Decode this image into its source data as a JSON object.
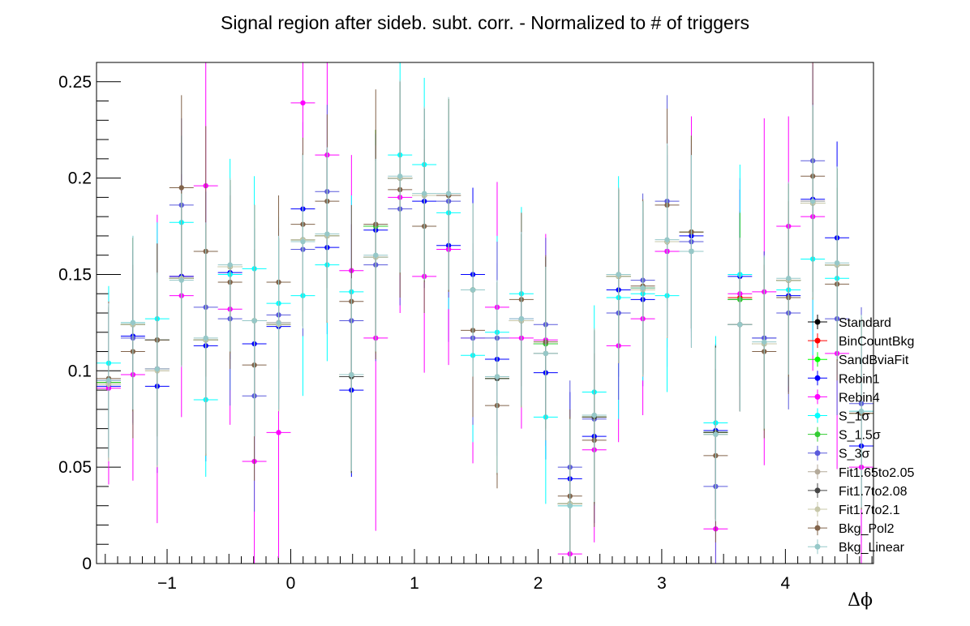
{
  "chart_data": {
    "type": "scatter",
    "title": "Signal region after sideb. subt. corr. - Normalized to # of triggers",
    "xlabel": "Δϕ",
    "ylabel": "",
    "xlim": [
      -1.5708,
      4.7124
    ],
    "ylim": [
      0,
      0.26
    ],
    "x_ticks": [
      -1,
      0,
      1,
      2,
      3,
      4
    ],
    "x_tick_labels": [
      "−1",
      "0",
      "1",
      "2",
      "3",
      "4"
    ],
    "y_ticks": [
      0,
      0.05,
      0.1,
      0.15,
      0.2,
      0.25
    ],
    "y_tick_labels": [
      "0",
      "0.05",
      "0.1",
      "0.15",
      "0.2",
      "0.25"
    ],
    "grid": false,
    "legend_position": "right",
    "bin_width": 0.1963,
    "x": [
      -1.4726,
      -1.2763,
      -1.0799,
      -0.8836,
      -0.6872,
      -0.4909,
      -0.2945,
      -0.0982,
      0.0982,
      0.2945,
      0.4909,
      0.6872,
      0.8836,
      1.0799,
      1.2763,
      1.4726,
      1.669,
      1.8653,
      2.0617,
      2.258,
      2.4544,
      2.6507,
      2.8471,
      3.0434,
      3.2398,
      3.4361,
      3.6325,
      3.8288,
      4.0252,
      4.2215,
      4.4179,
      4.6142
    ],
    "series": [
      {
        "name": "Standard",
        "color": "#000000",
        "values": [
          0.093,
          0.124,
          0.116,
          0.148,
          0.116,
          0.154,
          0.126,
          0.124,
          0.168,
          0.17,
          0.097,
          0.175,
          0.2,
          0.191,
          0.191,
          0.142,
          0.096,
          0.126,
          0.114,
          0.031,
          0.076,
          0.149,
          0.143,
          0.167,
          0.172,
          0.068,
          0.137,
          0.114,
          0.147,
          0.187,
          0.155,
          0.078
        ],
        "errors": [
          0.04,
          0.045,
          0.05,
          0.045,
          0.06,
          0.045,
          0.06,
          0.045,
          0.045,
          0.045,
          0.05,
          0.05,
          0.05,
          0.045,
          0.05,
          0.045,
          0.05,
          0.045,
          0.045,
          0.045,
          0.045,
          0.045,
          0.045,
          0.05,
          0.05,
          0.045,
          0.045,
          0.045,
          0.05,
          0.05,
          0.05,
          0.05
        ]
      },
      {
        "name": "BinCountBkg",
        "color": "#ff0000",
        "values": [
          0.094,
          0.124,
          0.116,
          0.149,
          0.116,
          0.154,
          0.126,
          0.125,
          0.168,
          0.17,
          0.098,
          0.175,
          0.2,
          0.191,
          0.191,
          0.142,
          0.096,
          0.126,
          0.114,
          0.031,
          0.076,
          0.149,
          0.143,
          0.167,
          0.172,
          0.068,
          0.138,
          0.114,
          0.147,
          0.188,
          0.155,
          0.078
        ],
        "errors": [
          0.04,
          0.045,
          0.05,
          0.045,
          0.06,
          0.045,
          0.06,
          0.045,
          0.045,
          0.045,
          0.05,
          0.05,
          0.05,
          0.045,
          0.05,
          0.045,
          0.05,
          0.045,
          0.045,
          0.045,
          0.045,
          0.045,
          0.045,
          0.05,
          0.05,
          0.045,
          0.045,
          0.045,
          0.05,
          0.05,
          0.05,
          0.05
        ]
      },
      {
        "name": "SandBviaFit",
        "color": "#00ff00",
        "values": [
          0.094,
          0.124,
          0.116,
          0.148,
          0.116,
          0.154,
          0.126,
          0.124,
          0.168,
          0.17,
          0.097,
          0.175,
          0.2,
          0.191,
          0.191,
          0.142,
          0.096,
          0.126,
          0.114,
          0.031,
          0.076,
          0.149,
          0.143,
          0.167,
          0.172,
          0.068,
          0.137,
          0.114,
          0.147,
          0.187,
          0.155,
          0.078
        ],
        "errors": [
          0.04,
          0.045,
          0.05,
          0.045,
          0.06,
          0.045,
          0.06,
          0.045,
          0.045,
          0.045,
          0.05,
          0.05,
          0.05,
          0.045,
          0.05,
          0.045,
          0.05,
          0.045,
          0.045,
          0.045,
          0.045,
          0.045,
          0.045,
          0.05,
          0.05,
          0.045,
          0.045,
          0.045,
          0.05,
          0.05,
          0.05,
          0.05
        ]
      },
      {
        "name": "Rebin1",
        "color": "#0000ff",
        "values": [
          0.092,
          0.118,
          0.092,
          0.149,
          0.113,
          0.151,
          0.114,
          0.123,
          0.184,
          0.164,
          0.09,
          0.173,
          0.2,
          0.188,
          0.165,
          0.15,
          0.106,
          0.126,
          0.099,
          0.044,
          0.066,
          0.142,
          0.137,
          0.162,
          0.17,
          0.069,
          0.149,
          0.117,
          0.139,
          0.189,
          0.169,
          0.061
        ],
        "errors": [
          0.04,
          0.045,
          0.045,
          0.045,
          0.06,
          0.045,
          0.06,
          0.045,
          0.045,
          0.045,
          0.045,
          0.05,
          0.05,
          0.045,
          0.05,
          0.045,
          0.05,
          0.045,
          0.045,
          0.045,
          0.045,
          0.045,
          0.045,
          0.05,
          0.05,
          0.045,
          0.045,
          0.045,
          0.05,
          0.05,
          0.05,
          0.05
        ]
      },
      {
        "name": "Rebin4",
        "color": "#ff00ff",
        "values": [
          0.091,
          0.098,
          0.101,
          0.139,
          0.196,
          0.132,
          0.053,
          0.068,
          0.239,
          0.212,
          0.152,
          0.117,
          0.19,
          0.149,
          0.163,
          0.117,
          0.133,
          0.117,
          0.116,
          0.005,
          0.059,
          0.113,
          0.127,
          0.162,
          0.172,
          0.018,
          0.14,
          0.141,
          0.175,
          0.18,
          0.109,
          0.05
        ],
        "errors": [
          0.05,
          0.055,
          0.08,
          0.063,
          0.08,
          0.06,
          0.08,
          0.065,
          0.055,
          0.06,
          0.06,
          0.1,
          0.06,
          0.05,
          0.06,
          0.065,
          0.065,
          0.047,
          0.055,
          0.05,
          0.048,
          0.05,
          0.05,
          0.06,
          0.06,
          0.05,
          0.06,
          0.09,
          0.057,
          0.08,
          0.06,
          0.06
        ]
      },
      {
        "name": "S_1σ",
        "color": "#00ffff",
        "values": [
          0.104,
          0.125,
          0.127,
          0.177,
          0.085,
          0.15,
          0.153,
          0.135,
          0.139,
          0.155,
          0.141,
          0.159,
          0.212,
          0.207,
          0.182,
          0.108,
          0.12,
          0.14,
          0.076,
          0.03,
          0.089,
          0.138,
          0.14,
          0.139,
          0.162,
          0.073,
          0.15,
          0.114,
          0.142,
          0.158,
          0.148,
          0.079
        ],
        "errors": [
          0.04,
          0.045,
          0.05,
          0.045,
          0.04,
          0.06,
          0.048,
          0.045,
          0.052,
          0.05,
          0.05,
          0.05,
          0.05,
          0.045,
          0.05,
          0.045,
          0.05,
          0.045,
          0.045,
          0.045,
          0.045,
          0.063,
          0.045,
          0.05,
          0.05,
          0.045,
          0.057,
          0.045,
          0.05,
          0.05,
          0.05,
          0.05
        ]
      },
      {
        "name": "S_1.5σ",
        "color": "#33cc33",
        "values": [
          0.094,
          0.124,
          0.116,
          0.148,
          0.116,
          0.154,
          0.126,
          0.124,
          0.168,
          0.17,
          0.097,
          0.175,
          0.2,
          0.191,
          0.191,
          0.142,
          0.096,
          0.126,
          0.114,
          0.031,
          0.076,
          0.149,
          0.143,
          0.167,
          0.172,
          0.068,
          0.137,
          0.114,
          0.147,
          0.187,
          0.155,
          0.078
        ],
        "errors": [
          0.04,
          0.045,
          0.05,
          0.045,
          0.06,
          0.045,
          0.06,
          0.045,
          0.045,
          0.045,
          0.05,
          0.05,
          0.05,
          0.045,
          0.05,
          0.045,
          0.05,
          0.045,
          0.045,
          0.045,
          0.045,
          0.045,
          0.045,
          0.05,
          0.05,
          0.045,
          0.045,
          0.045,
          0.05,
          0.05,
          0.05,
          0.05
        ]
      },
      {
        "name": "S_3σ",
        "color": "#5a5adc",
        "values": [
          0.095,
          0.117,
          0.116,
          0.186,
          0.133,
          0.127,
          0.087,
          0.129,
          0.163,
          0.193,
          0.126,
          0.155,
          0.184,
          0.191,
          0.188,
          0.117,
          0.117,
          0.127,
          0.124,
          0.05,
          0.075,
          0.13,
          0.147,
          0.188,
          0.167,
          0.04,
          0.124,
          0.117,
          0.13,
          0.209,
          0.127,
          0.083
        ],
        "errors": [
          0.04,
          0.045,
          0.05,
          0.045,
          0.06,
          0.045,
          0.06,
          0.045,
          0.045,
          0.045,
          0.05,
          0.05,
          0.05,
          0.045,
          0.05,
          0.045,
          0.05,
          0.045,
          0.045,
          0.045,
          0.045,
          0.045,
          0.045,
          0.055,
          0.05,
          0.05,
          0.045,
          0.045,
          0.05,
          0.05,
          0.05,
          0.05
        ]
      },
      {
        "name": "Fit1.65to2.05",
        "color": "#b4aa9a",
        "values": [
          0.093,
          0.124,
          0.1,
          0.148,
          0.116,
          0.154,
          0.126,
          0.124,
          0.168,
          0.17,
          0.097,
          0.159,
          0.2,
          0.191,
          0.191,
          0.142,
          0.096,
          0.126,
          0.109,
          0.031,
          0.076,
          0.149,
          0.142,
          0.167,
          0.162,
          0.067,
          0.124,
          0.114,
          0.147,
          0.187,
          0.155,
          0.078
        ],
        "errors": [
          0.04,
          0.045,
          0.05,
          0.045,
          0.06,
          0.045,
          0.06,
          0.045,
          0.045,
          0.045,
          0.05,
          0.05,
          0.05,
          0.045,
          0.05,
          0.045,
          0.05,
          0.045,
          0.045,
          0.045,
          0.045,
          0.045,
          0.045,
          0.05,
          0.05,
          0.045,
          0.045,
          0.045,
          0.05,
          0.05,
          0.05,
          0.05
        ]
      },
      {
        "name": "Fit1.7to2.08",
        "color": "#464646",
        "values": [
          0.093,
          0.124,
          0.101,
          0.148,
          0.116,
          0.154,
          0.126,
          0.124,
          0.168,
          0.17,
          0.097,
          0.159,
          0.2,
          0.191,
          0.191,
          0.142,
          0.096,
          0.126,
          0.109,
          0.031,
          0.076,
          0.149,
          0.142,
          0.167,
          0.162,
          0.068,
          0.124,
          0.114,
          0.147,
          0.187,
          0.155,
          0.078
        ],
        "errors": [
          0.04,
          0.045,
          0.05,
          0.045,
          0.06,
          0.045,
          0.06,
          0.045,
          0.045,
          0.045,
          0.05,
          0.05,
          0.05,
          0.045,
          0.05,
          0.045,
          0.05,
          0.045,
          0.045,
          0.045,
          0.045,
          0.045,
          0.045,
          0.05,
          0.05,
          0.045,
          0.045,
          0.045,
          0.05,
          0.05,
          0.05,
          0.05
        ]
      },
      {
        "name": "Fit1.7to2.1",
        "color": "#c8c8aa",
        "values": [
          0.093,
          0.124,
          0.1,
          0.148,
          0.116,
          0.154,
          0.126,
          0.124,
          0.168,
          0.17,
          0.098,
          0.159,
          0.2,
          0.191,
          0.191,
          0.142,
          0.097,
          0.126,
          0.109,
          0.031,
          0.077,
          0.149,
          0.142,
          0.167,
          0.162,
          0.067,
          0.124,
          0.114,
          0.147,
          0.187,
          0.155,
          0.078
        ],
        "errors": [
          0.04,
          0.045,
          0.05,
          0.045,
          0.06,
          0.045,
          0.06,
          0.045,
          0.045,
          0.045,
          0.05,
          0.05,
          0.05,
          0.045,
          0.05,
          0.045,
          0.05,
          0.045,
          0.045,
          0.045,
          0.045,
          0.045,
          0.045,
          0.05,
          0.05,
          0.045,
          0.045,
          0.045,
          0.05,
          0.05,
          0.05,
          0.05
        ]
      },
      {
        "name": "Bkg_Pol2",
        "color": "#82644b",
        "values": [
          0.096,
          0.11,
          0.116,
          0.195,
          0.162,
          0.146,
          0.103,
          0.146,
          0.176,
          0.188,
          0.136,
          0.176,
          0.194,
          0.175,
          0.191,
          0.121,
          0.082,
          0.137,
          0.115,
          0.035,
          0.064,
          0.15,
          0.144,
          0.186,
          0.172,
          0.056,
          0.124,
          0.11,
          0.138,
          0.201,
          0.145,
          0.078
        ],
        "errors": [
          0.04,
          0.045,
          0.05,
          0.048,
          0.065,
          0.045,
          0.06,
          0.045,
          0.045,
          0.045,
          0.05,
          0.07,
          0.056,
          0.045,
          0.05,
          0.045,
          0.043,
          0.045,
          0.045,
          0.045,
          0.045,
          0.045,
          0.045,
          0.05,
          0.05,
          0.045,
          0.045,
          0.045,
          0.05,
          0.06,
          0.05,
          0.05
        ]
      },
      {
        "name": "Bkg_Linear",
        "color": "#96c8c8",
        "values": [
          0.095,
          0.125,
          0.101,
          0.147,
          0.117,
          0.155,
          0.126,
          0.125,
          0.167,
          0.171,
          0.098,
          0.16,
          0.201,
          0.192,
          0.192,
          0.142,
          0.097,
          0.127,
          0.109,
          0.03,
          0.077,
          0.15,
          0.143,
          0.168,
          0.162,
          0.067,
          0.124,
          0.115,
          0.148,
          0.188,
          0.156,
          0.079
        ],
        "errors": [
          0.04,
          0.045,
          0.05,
          0.045,
          0.06,
          0.045,
          0.06,
          0.045,
          0.045,
          0.045,
          0.05,
          0.05,
          0.05,
          0.045,
          0.05,
          0.045,
          0.05,
          0.045,
          0.045,
          0.045,
          0.045,
          0.045,
          0.045,
          0.05,
          0.05,
          0.045,
          0.045,
          0.045,
          0.05,
          0.05,
          0.05,
          0.05
        ]
      }
    ]
  }
}
